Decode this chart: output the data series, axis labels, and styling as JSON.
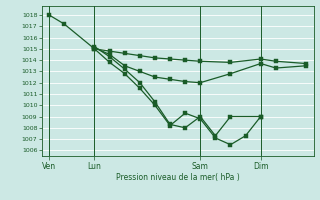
{
  "background_color": "#cce8e4",
  "grid_color": "#ffffff",
  "line_color": "#1a5c28",
  "markersize": 2.5,
  "linewidth": 0.9,
  "ylabel": "Pression niveau de la mer( hPa )",
  "ylim": [
    1005.5,
    1018.8
  ],
  "yticks": [
    1006,
    1007,
    1008,
    1009,
    1010,
    1011,
    1012,
    1013,
    1014,
    1015,
    1016,
    1017,
    1018
  ],
  "xtick_labels": [
    "Ven",
    "Lun",
    "Sam",
    "Dim"
  ],
  "xtick_positions": [
    0,
    3,
    10,
    14
  ],
  "xlim": [
    -0.5,
    17.5
  ],
  "lines": [
    {
      "x": [
        0,
        1,
        3,
        4,
        5,
        6,
        7,
        8,
        9,
        10,
        12,
        14,
        15,
        17
      ],
      "y": [
        1018.0,
        1017.2,
        1015.0,
        1014.8,
        1014.6,
        1014.4,
        1014.2,
        1014.1,
        1014.0,
        1013.9,
        1013.8,
        1014.1,
        1013.9,
        1013.7
      ]
    },
    {
      "x": [
        3,
        4,
        5,
        6,
        7,
        8,
        9,
        10,
        12,
        14,
        15,
        17
      ],
      "y": [
        1015.1,
        1014.5,
        1013.5,
        1013.0,
        1012.5,
        1012.3,
        1012.1,
        1012.0,
        1012.8,
        1013.7,
        1013.3,
        1013.5
      ]
    },
    {
      "x": [
        3,
        4,
        5,
        6,
        7,
        8,
        9,
        10,
        11,
        12,
        14
      ],
      "y": [
        1015.2,
        1014.3,
        1013.2,
        1012.0,
        1010.3,
        1008.3,
        1008.0,
        1009.0,
        1007.3,
        1009.0,
        1009.0
      ]
    },
    {
      "x": [
        3,
        4,
        5,
        6,
        7,
        8,
        9,
        10,
        11,
        12,
        13,
        14
      ],
      "y": [
        1015.0,
        1013.8,
        1012.8,
        1011.5,
        1010.0,
        1008.2,
        1009.3,
        1008.8,
        1007.1,
        1006.5,
        1007.3,
        1009.0
      ]
    }
  ]
}
